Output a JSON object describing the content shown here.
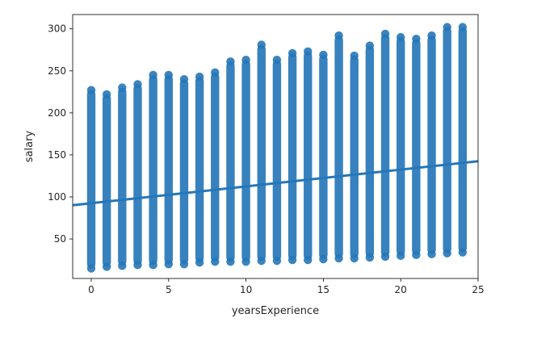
{
  "chart_data": {
    "type": "scatter",
    "title": "",
    "xlabel": "yearsExperience",
    "ylabel": "salary",
    "xlim": [
      -1.2,
      25
    ],
    "ylim": [
      3,
      317
    ],
    "xticks": [
      0,
      5,
      10,
      15,
      20,
      25
    ],
    "yticks": [
      50,
      100,
      150,
      200,
      250,
      300
    ],
    "grid": false,
    "legend": "none",
    "color": "#2677b8",
    "series": [
      {
        "x": [
          0,
          1,
          2,
          3,
          4,
          5,
          6,
          7,
          8,
          9,
          10,
          11,
          12,
          13,
          14,
          15,
          16,
          17,
          18,
          19,
          20,
          21,
          22,
          23,
          24
        ],
        "y_min": [
          15,
          17,
          18,
          19,
          19,
          20,
          20,
          22,
          23,
          23,
          23,
          24,
          24,
          25,
          25,
          26,
          27,
          27,
          28,
          29,
          30,
          31,
          32,
          33,
          34
        ],
        "y_max": [
          227,
          222,
          230,
          234,
          245,
          245,
          240,
          243,
          248,
          261,
          263,
          281,
          263,
          271,
          273,
          269,
          292,
          268,
          280,
          294,
          290,
          288,
          292,
          302,
          302
        ]
      }
    ],
    "regression": {
      "intercept": 92.5,
      "slope": 2.0
    }
  }
}
